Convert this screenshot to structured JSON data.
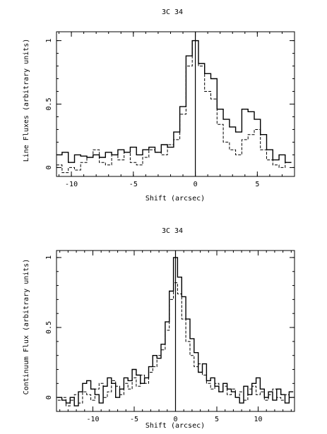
{
  "chart_data": [
    {
      "type": "line",
      "title": "3C 34",
      "xlabel": "Shift (arcsec)",
      "ylabel": "Line Fluxes (arbitrary units)",
      "xlim": [
        -11.2,
        8.0
      ],
      "ylim": [
        -0.07,
        1.07
      ],
      "xticks": [
        -10,
        -5,
        0,
        5
      ],
      "xtick_labels": [
        "-10",
        "-5",
        "0",
        "5"
      ],
      "yticks": [
        0,
        0.5,
        1
      ],
      "ytick_labels": [
        "0",
        "0.5",
        "1"
      ],
      "x_minor_step": 1,
      "y_minor_step": 0.1,
      "vline_x": 0,
      "grid": false,
      "series": [
        {
          "style": "solid",
          "x": [
            -11.0,
            -10.5,
            -10.0,
            -9.5,
            -9.0,
            -8.5,
            -8.0,
            -7.5,
            -7.0,
            -6.5,
            -6.0,
            -5.5,
            -5.0,
            -4.5,
            -4.0,
            -3.5,
            -3.0,
            -2.5,
            -2.0,
            -1.5,
            -1.0,
            -0.5,
            0.0,
            0.5,
            1.0,
            1.5,
            2.0,
            2.5,
            3.0,
            3.5,
            4.0,
            4.5,
            5.0,
            5.5,
            6.0,
            6.5,
            7.0,
            7.5
          ],
          "values": [
            0.1,
            0.12,
            0.04,
            0.1,
            0.09,
            0.08,
            0.1,
            0.08,
            0.12,
            0.1,
            0.14,
            0.12,
            0.16,
            0.1,
            0.14,
            0.16,
            0.12,
            0.18,
            0.16,
            0.28,
            0.48,
            0.88,
            1.0,
            0.82,
            0.74,
            0.7,
            0.46,
            0.38,
            0.32,
            0.28,
            0.46,
            0.44,
            0.38,
            0.26,
            0.14,
            0.06,
            0.1,
            0.04
          ]
        },
        {
          "style": "dashed",
          "x": [
            -11.0,
            -10.5,
            -10.0,
            -9.5,
            -9.0,
            -8.5,
            -8.0,
            -7.5,
            -7.0,
            -6.5,
            -6.0,
            -5.5,
            -5.0,
            -4.5,
            -4.0,
            -3.5,
            -3.0,
            -2.5,
            -2.0,
            -1.5,
            -1.0,
            -0.5,
            0.0,
            0.5,
            1.0,
            1.5,
            2.0,
            2.5,
            3.0,
            3.5,
            4.0,
            4.5,
            5.0,
            5.5,
            6.0,
            6.5,
            7.0,
            7.5
          ],
          "values": [
            0.02,
            -0.04,
            0.0,
            -0.02,
            0.04,
            0.08,
            0.14,
            0.04,
            0.02,
            0.1,
            0.06,
            0.12,
            0.04,
            0.02,
            0.08,
            0.14,
            0.12,
            0.1,
            0.18,
            0.22,
            0.42,
            0.8,
            1.0,
            0.8,
            0.6,
            0.54,
            0.34,
            0.2,
            0.14,
            0.1,
            0.22,
            0.26,
            0.3,
            0.14,
            0.06,
            0.02,
            0.0,
            0.04
          ]
        }
      ]
    },
    {
      "type": "line",
      "title": "3C 34",
      "xlabel": "Shift (arcsec)",
      "ylabel": "Continuum Flux (arbitrary units)",
      "xlim": [
        -14.4,
        14.4
      ],
      "ylim": [
        -0.1,
        1.05
      ],
      "xticks": [
        -10,
        -5,
        0,
        5,
        10
      ],
      "xtick_labels": [
        "-10",
        "-5",
        "0",
        "5",
        "10"
      ],
      "yticks": [
        0,
        0.5,
        1
      ],
      "ytick_labels": [
        "0",
        "0.5",
        "1"
      ],
      "x_minor_step": 1,
      "y_minor_step": 0.1,
      "vline_x": 0,
      "grid": false,
      "series": [
        {
          "style": "solid",
          "x": [
            -14.0,
            -13.5,
            -13.0,
            -12.5,
            -12.0,
            -11.5,
            -11.0,
            -10.5,
            -10.0,
            -9.5,
            -9.0,
            -8.5,
            -8.0,
            -7.5,
            -7.0,
            -6.5,
            -6.0,
            -5.5,
            -5.0,
            -4.5,
            -4.0,
            -3.5,
            -3.0,
            -2.5,
            -2.0,
            -1.5,
            -1.0,
            -0.5,
            0.0,
            0.5,
            1.0,
            1.5,
            2.0,
            2.5,
            3.0,
            3.5,
            4.0,
            4.5,
            5.0,
            5.5,
            6.0,
            6.5,
            7.0,
            7.5,
            8.0,
            8.5,
            9.0,
            9.5,
            10.0,
            10.5,
            11.0,
            11.5,
            12.0,
            12.5,
            13.0,
            13.5,
            14.0
          ],
          "values": [
            0.0,
            -0.02,
            -0.04,
            0.0,
            -0.06,
            0.04,
            0.1,
            0.12,
            0.06,
            0.02,
            -0.04,
            0.08,
            0.14,
            0.1,
            0.0,
            0.06,
            0.14,
            0.12,
            0.2,
            0.16,
            0.1,
            0.14,
            0.22,
            0.3,
            0.28,
            0.38,
            0.54,
            0.76,
            1.0,
            0.86,
            0.72,
            0.56,
            0.42,
            0.32,
            0.18,
            0.24,
            0.12,
            0.14,
            0.08,
            0.04,
            0.1,
            0.06,
            0.04,
            0.0,
            -0.04,
            0.08,
            0.02,
            0.1,
            0.14,
            0.06,
            0.0,
            0.04,
            -0.02,
            0.06,
            0.02,
            -0.04,
            0.04
          ]
        },
        {
          "style": "dashed",
          "x": [
            -14.0,
            -13.5,
            -13.0,
            -12.5,
            -12.0,
            -11.5,
            -11.0,
            -10.5,
            -10.0,
            -9.5,
            -9.0,
            -8.5,
            -8.0,
            -7.5,
            -7.0,
            -6.5,
            -6.0,
            -5.5,
            -5.0,
            -4.5,
            -4.0,
            -3.5,
            -3.0,
            -2.5,
            -2.0,
            -1.5,
            -1.0,
            -0.5,
            0.0,
            0.5,
            1.0,
            1.5,
            2.0,
            2.5,
            3.0,
            3.5,
            4.0,
            4.5,
            5.0,
            5.5,
            6.0,
            6.5,
            7.0,
            7.5,
            8.0,
            8.5,
            9.0,
            9.5,
            10.0,
            10.5,
            11.0,
            11.5,
            12.0,
            12.5,
            13.0,
            13.5,
            14.0
          ],
          "values": [
            -0.02,
            0.0,
            -0.06,
            -0.02,
            0.02,
            -0.04,
            0.04,
            0.02,
            -0.02,
            0.06,
            0.1,
            0.0,
            0.04,
            0.12,
            0.08,
            0.02,
            0.1,
            0.06,
            0.14,
            0.08,
            0.16,
            0.1,
            0.18,
            0.22,
            0.3,
            0.34,
            0.48,
            0.7,
            0.82,
            0.74,
            0.56,
            0.4,
            0.3,
            0.22,
            0.24,
            0.16,
            0.1,
            0.06,
            0.1,
            0.04,
            0.08,
            0.02,
            0.06,
            0.0,
            0.04,
            -0.02,
            0.06,
            0.08,
            0.02,
            0.04,
            -0.02,
            0.02,
            0.06,
            0.0,
            -0.02,
            0.02,
            0.0
          ]
        }
      ]
    }
  ]
}
